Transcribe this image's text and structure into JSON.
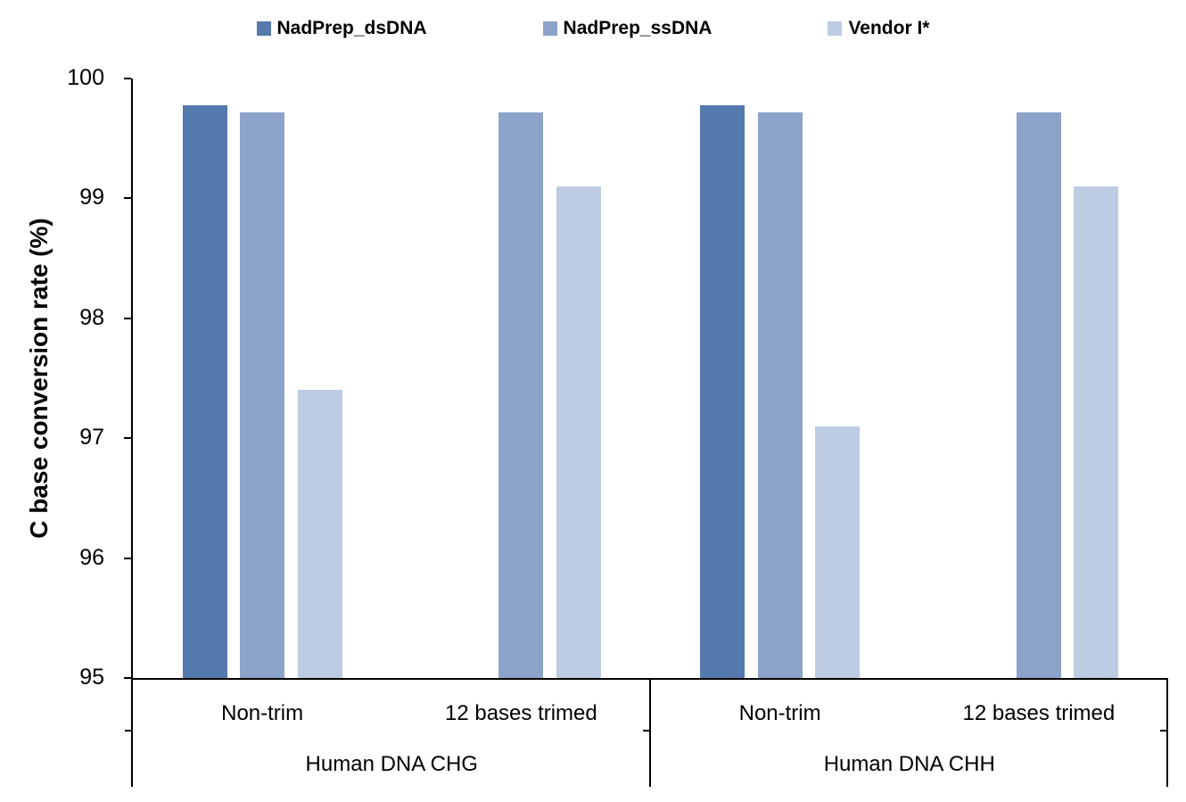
{
  "chart_data": {
    "type": "bar",
    "title": "",
    "ylabel": "C base conversion rate (%)",
    "xlabel": "",
    "ylim": [
      95,
      100
    ],
    "ytick_values": [
      100,
      99,
      98,
      97,
      96,
      95
    ],
    "ytick_labels": [
      "100",
      "99",
      "98",
      "97",
      "96",
      "95"
    ],
    "grid": false,
    "legend_position": "top",
    "axis_color": "#000000",
    "background_color": "#ffffff",
    "categories": [
      "Non-trim",
      "12 bases trimed",
      "Non-trim",
      "12 bases trimed"
    ],
    "parent_categories": [
      {
        "label": "Human DNA CHG",
        "span": [
          0,
          1
        ]
      },
      {
        "label": "Human DNA CHH",
        "span": [
          2,
          3
        ]
      }
    ],
    "series": [
      {
        "name": "NadPrep_dsDNA",
        "color": "#5578AD",
        "values": [
          99.78,
          null,
          99.78,
          null
        ]
      },
      {
        "name": "NadPrep_ssDNA",
        "color": "#8CA3C9",
        "values": [
          99.72,
          99.72,
          99.72,
          99.72
        ]
      },
      {
        "name": "Vendor I*",
        "color": "#BDCCE3",
        "values": [
          97.4,
          99.1,
          97.1,
          99.1
        ]
      }
    ]
  }
}
